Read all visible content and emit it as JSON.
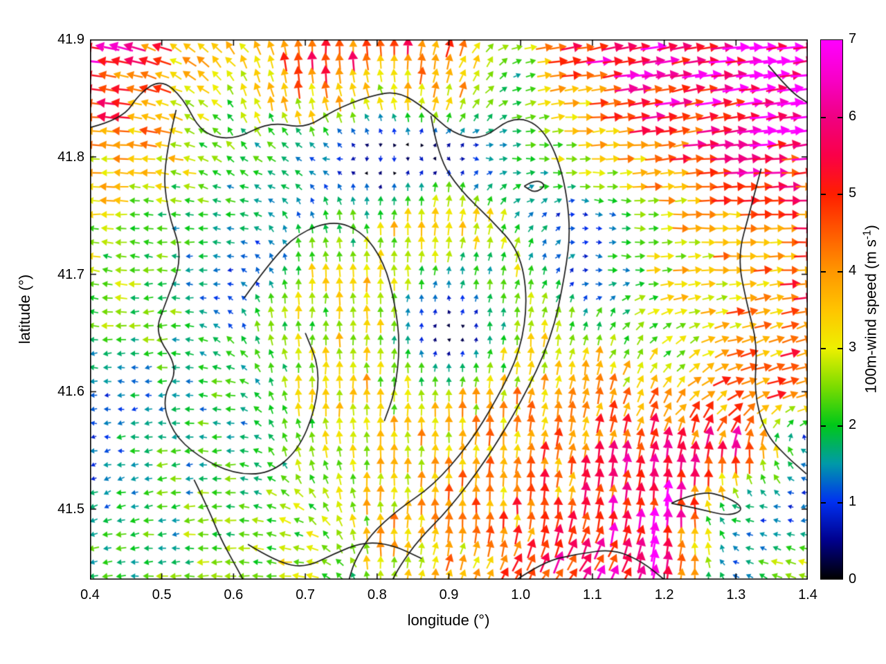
{
  "chart_data": {
    "type": "quiver",
    "xlabel": "longitude (°)",
    "ylabel": "latitude (°)",
    "xlim": [
      0.4,
      1.4
    ],
    "ylim": [
      41.44,
      41.9
    ],
    "x_ticks": [
      0.4,
      0.5,
      0.6,
      0.7,
      0.8,
      0.9,
      1.0,
      1.1,
      1.2,
      1.3,
      1.4
    ],
    "y_ticks": [
      41.5,
      41.6,
      41.7,
      41.8,
      41.9
    ],
    "grid": false,
    "colorbar": {
      "label": "100m-wind speed (m s⁻¹)",
      "label_prefix": "100m-wind speed (m s",
      "label_sup": "-1",
      "label_suffix": ")",
      "min": 0,
      "max": 7,
      "ticks": [
        0,
        1,
        2,
        3,
        4,
        5,
        6,
        7
      ],
      "color_stops": [
        {
          "v": 0.0,
          "c": "#000000"
        },
        {
          "v": 0.5,
          "c": "#00008c"
        },
        {
          "v": 1.0,
          "c": "#0030f0"
        },
        {
          "v": 1.5,
          "c": "#009aa8"
        },
        {
          "v": 2.0,
          "c": "#00c818"
        },
        {
          "v": 2.5,
          "c": "#7cdc00"
        },
        {
          "v": 3.0,
          "c": "#eef000"
        },
        {
          "v": 3.5,
          "c": "#ffc400"
        },
        {
          "v": 4.0,
          "c": "#ff9600"
        },
        {
          "v": 4.5,
          "c": "#ff5a00"
        },
        {
          "v": 5.0,
          "c": "#ff1e00"
        },
        {
          "v": 5.5,
          "c": "#fa0048"
        },
        {
          "v": 6.0,
          "c": "#f00082"
        },
        {
          "v": 6.5,
          "c": "#f800c8"
        },
        {
          "v": 7.0,
          "c": "#ff00ff"
        }
      ]
    },
    "wind_grid": {
      "comment_units": "u eastward m/s, v northward m/s, rows ordered north to south",
      "lon": [
        0.4,
        0.5,
        0.6,
        0.7,
        0.8,
        0.9,
        1.0,
        1.1,
        1.2,
        1.3,
        1.4
      ],
      "lat": [
        41.9,
        41.85,
        41.8,
        41.75,
        41.7,
        41.65,
        41.6,
        41.55,
        41.5,
        41.45
      ],
      "u": [
        [
          -6.0,
          -4.5,
          -2.0,
          0.0,
          0.0,
          1.0,
          2.5,
          6.0,
          6.5,
          6.5,
          7.0
        ],
        [
          -5.0,
          -3.5,
          -1.5,
          -0.5,
          -1.0,
          1.0,
          2.0,
          4.0,
          5.5,
          6.5,
          7.0
        ],
        [
          -4.0,
          -3.5,
          -1.5,
          -1.5,
          0.0,
          0.3,
          2.0,
          3.0,
          4.5,
          5.5,
          6.0
        ],
        [
          -3.0,
          -2.0,
          -2.0,
          -0.5,
          0.0,
          0.3,
          1.0,
          1.0,
          3.0,
          4.0,
          4.5
        ],
        [
          -2.5,
          -2.0,
          -1.0,
          0.0,
          0.0,
          0.2,
          0.5,
          1.0,
          3.0,
          4.0,
          4.5
        ],
        [
          -2.0,
          -2.5,
          -1.0,
          0.0,
          0.0,
          0.0,
          0.3,
          0.5,
          2.0,
          3.5,
          4.0
        ],
        [
          -1.0,
          -1.5,
          -2.0,
          0.0,
          0.0,
          0.0,
          0.5,
          0.8,
          2.0,
          4.0,
          5.0
        ],
        [
          -1.2,
          -1.8,
          -2.0,
          -0.5,
          0.0,
          0.0,
          0.5,
          0.8,
          1.0,
          0.5,
          -1.5
        ],
        [
          -1.5,
          -2.0,
          -2.2,
          -2.0,
          0.0,
          0.0,
          0.0,
          0.8,
          0.5,
          -1.5,
          -1.0
        ],
        [
          -2.0,
          -2.0,
          -2.5,
          -3.0,
          0.0,
          1.0,
          2.0,
          3.0,
          1.0,
          -1.0,
          -3.0
        ]
      ],
      "v": [
        [
          1.0,
          2.0,
          3.0,
          5.0,
          5.0,
          4.5,
          0.5,
          1.0,
          1.0,
          0.5,
          0.5
        ],
        [
          0.5,
          1.0,
          2.0,
          4.0,
          3.0,
          3.5,
          0.5,
          0.5,
          1.0,
          1.0,
          1.0
        ],
        [
          0.0,
          0.5,
          1.5,
          0.5,
          -0.8,
          -0.5,
          0.0,
          0.0,
          0.5,
          0.5,
          0.5
        ],
        [
          0.0,
          0.3,
          0.0,
          1.5,
          2.5,
          4.5,
          1.5,
          -0.3,
          0.0,
          0.0,
          0.0
        ],
        [
          0.5,
          0.0,
          0.0,
          2.8,
          3.0,
          1.5,
          2.5,
          -0.2,
          0.2,
          0.3,
          0.3
        ],
        [
          0.0,
          -0.3,
          1.5,
          3.0,
          3.0,
          -0.6,
          2.8,
          2.5,
          1.5,
          1.0,
          1.5
        ],
        [
          0.0,
          0.0,
          0.2,
          3.0,
          3.2,
          3.0,
          3.5,
          4.0,
          3.0,
          2.0,
          1.0
        ],
        [
          -0.2,
          -0.2,
          0.0,
          2.5,
          3.0,
          3.5,
          4.0,
          4.5,
          5.5,
          6.0,
          0.5
        ],
        [
          -0.5,
          -0.3,
          0.0,
          1.5,
          3.5,
          4.0,
          4.5,
          5.0,
          6.5,
          0.5,
          -0.3
        ],
        [
          -0.3,
          0.0,
          0.0,
          0.3,
          3.0,
          3.5,
          4.0,
          5.0,
          6.0,
          0.5,
          1.0
        ]
      ]
    },
    "contours": [
      [
        [
          0.4,
          41.825
        ],
        [
          0.445,
          41.832
        ],
        [
          0.47,
          41.855
        ],
        [
          0.5,
          41.866
        ],
        [
          0.53,
          41.85
        ],
        [
          0.555,
          41.82
        ],
        [
          0.6,
          41.814
        ],
        [
          0.65,
          41.83
        ],
        [
          0.7,
          41.824
        ],
        [
          0.74,
          41.84
        ],
        [
          0.79,
          41.852
        ],
        [
          0.83,
          41.856
        ],
        [
          0.87,
          41.84
        ],
        [
          0.905,
          41.82
        ],
        [
          0.945,
          41.814
        ],
        [
          0.99,
          41.835
        ],
        [
          1.03,
          41.826
        ],
        [
          1.058,
          41.79
        ],
        [
          1.07,
          41.74
        ],
        [
          1.062,
          41.7
        ],
        [
          1.043,
          41.645
        ],
        [
          1.0,
          41.59
        ],
        [
          0.95,
          41.54
        ],
        [
          0.9,
          41.5
        ],
        [
          0.858,
          41.474
        ],
        [
          0.832,
          41.452
        ],
        [
          0.82,
          41.438
        ]
      ],
      [
        [
          0.875,
          41.835
        ],
        [
          0.885,
          41.8
        ],
        [
          0.915,
          41.772
        ],
        [
          0.958,
          41.747
        ],
        [
          0.998,
          41.72
        ],
        [
          1.01,
          41.68
        ],
        [
          1.0,
          41.635
        ],
        [
          0.968,
          41.595
        ],
        [
          0.928,
          41.555
        ],
        [
          0.878,
          41.52
        ],
        [
          0.83,
          41.5
        ],
        [
          0.79,
          41.478
        ],
        [
          0.768,
          41.455
        ],
        [
          0.76,
          41.438
        ]
      ],
      [
        [
          0.52,
          41.84
        ],
        [
          0.502,
          41.795
        ],
        [
          0.507,
          41.755
        ],
        [
          0.53,
          41.715
        ],
        [
          0.505,
          41.675
        ],
        [
          0.49,
          41.65
        ],
        [
          0.524,
          41.62
        ],
        [
          0.5,
          41.594
        ],
        [
          0.515,
          41.565
        ],
        [
          0.55,
          41.545
        ],
        [
          0.6,
          41.53
        ],
        [
          0.65,
          41.53
        ],
        [
          0.69,
          41.55
        ],
        [
          0.714,
          41.585
        ],
        [
          0.72,
          41.62
        ],
        [
          0.7,
          41.65
        ]
      ],
      [
        [
          0.615,
          41.68
        ],
        [
          0.65,
          41.71
        ],
        [
          0.69,
          41.735
        ],
        [
          0.74,
          41.746
        ],
        [
          0.78,
          41.736
        ],
        [
          0.81,
          41.71
        ],
        [
          0.825,
          41.675
        ],
        [
          0.832,
          41.64
        ],
        [
          0.825,
          41.6
        ],
        [
          0.81,
          41.575
        ]
      ],
      [
        [
          0.545,
          41.525
        ],
        [
          0.565,
          41.5
        ],
        [
          0.582,
          41.475
        ],
        [
          0.6,
          41.455
        ],
        [
          0.615,
          41.438
        ]
      ],
      [
        [
          0.62,
          41.47
        ],
        [
          0.66,
          41.455
        ],
        [
          0.7,
          41.45
        ],
        [
          0.74,
          41.462
        ],
        [
          0.78,
          41.472
        ],
        [
          0.82,
          41.47
        ],
        [
          0.862,
          41.458
        ]
      ],
      [
        [
          1.335,
          41.79
        ],
        [
          1.32,
          41.755
        ],
        [
          1.302,
          41.715
        ],
        [
          1.315,
          41.675
        ],
        [
          1.33,
          41.64
        ],
        [
          1.325,
          41.6
        ],
        [
          1.34,
          41.565
        ],
        [
          1.37,
          41.545
        ],
        [
          1.398,
          41.53
        ]
      ],
      [
        [
          1.345,
          41.878
        ],
        [
          1.375,
          41.856
        ],
        [
          1.4,
          41.846
        ]
      ],
      [
        [
          0.99,
          41.438
        ],
        [
          1.03,
          41.455
        ],
        [
          1.08,
          41.462
        ],
        [
          1.13,
          41.466
        ],
        [
          1.17,
          41.455
        ],
        [
          1.2,
          41.44
        ]
      ],
      [
        [
          1.21,
          41.505
        ],
        [
          1.25,
          41.516
        ],
        [
          1.29,
          41.51
        ],
        [
          1.312,
          41.5
        ],
        [
          1.29,
          41.494
        ],
        [
          1.25,
          41.5
        ],
        [
          1.21,
          41.505
        ]
      ],
      [
        [
          1.005,
          41.775
        ],
        [
          1.02,
          41.781
        ],
        [
          1.036,
          41.776
        ],
        [
          1.02,
          41.769
        ],
        [
          1.005,
          41.775
        ]
      ]
    ],
    "contour_color": "#1a1a1a",
    "frame_color": "#000000",
    "background_color": "#ffffff"
  }
}
